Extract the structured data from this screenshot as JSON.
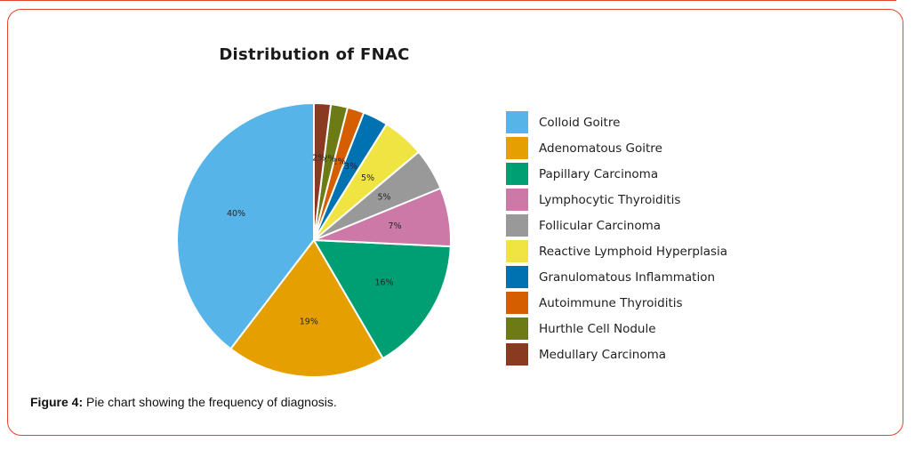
{
  "figure": {
    "border_color": "#e8432d",
    "background": "#ffffff"
  },
  "caption": {
    "label": "Figure 4:",
    "text": " Pie chart showing the frequency of diagnosis."
  },
  "chart_data": {
    "type": "pie",
    "title": "Distribution of FNAC",
    "start_angle": 90,
    "direction": "counterclockwise",
    "legend_position": "right",
    "slice_edge_color": "#ffffff",
    "label_color": "#262626",
    "categories": [
      "Colloid Goitre",
      "Adenomatous Goitre",
      "Papillary Carcinoma",
      "Lymphocytic Thyroiditis",
      "Follicular Carcinoma",
      "Reactive Lymphoid Hyperplasia",
      "Granulomatous Inflammation",
      "Autoimmune Thyroiditis",
      "Hurthle Cell Nodule",
      "Medullary Carcinoma"
    ],
    "values": [
      40,
      19,
      16,
      7,
      5,
      5,
      3,
      2,
      2,
      2
    ],
    "pct_labels": [
      "40%",
      "19%",
      "16%",
      "7%",
      "5%",
      "5%",
      "3%",
      "2%",
      "2%",
      "2%"
    ],
    "colors": [
      "#56B4E9",
      "#E69F00",
      "#009E73",
      "#CC79A7",
      "#999999",
      "#F0E442",
      "#0072B2",
      "#D55E00",
      "#6D7B16",
      "#8B3A22"
    ]
  }
}
